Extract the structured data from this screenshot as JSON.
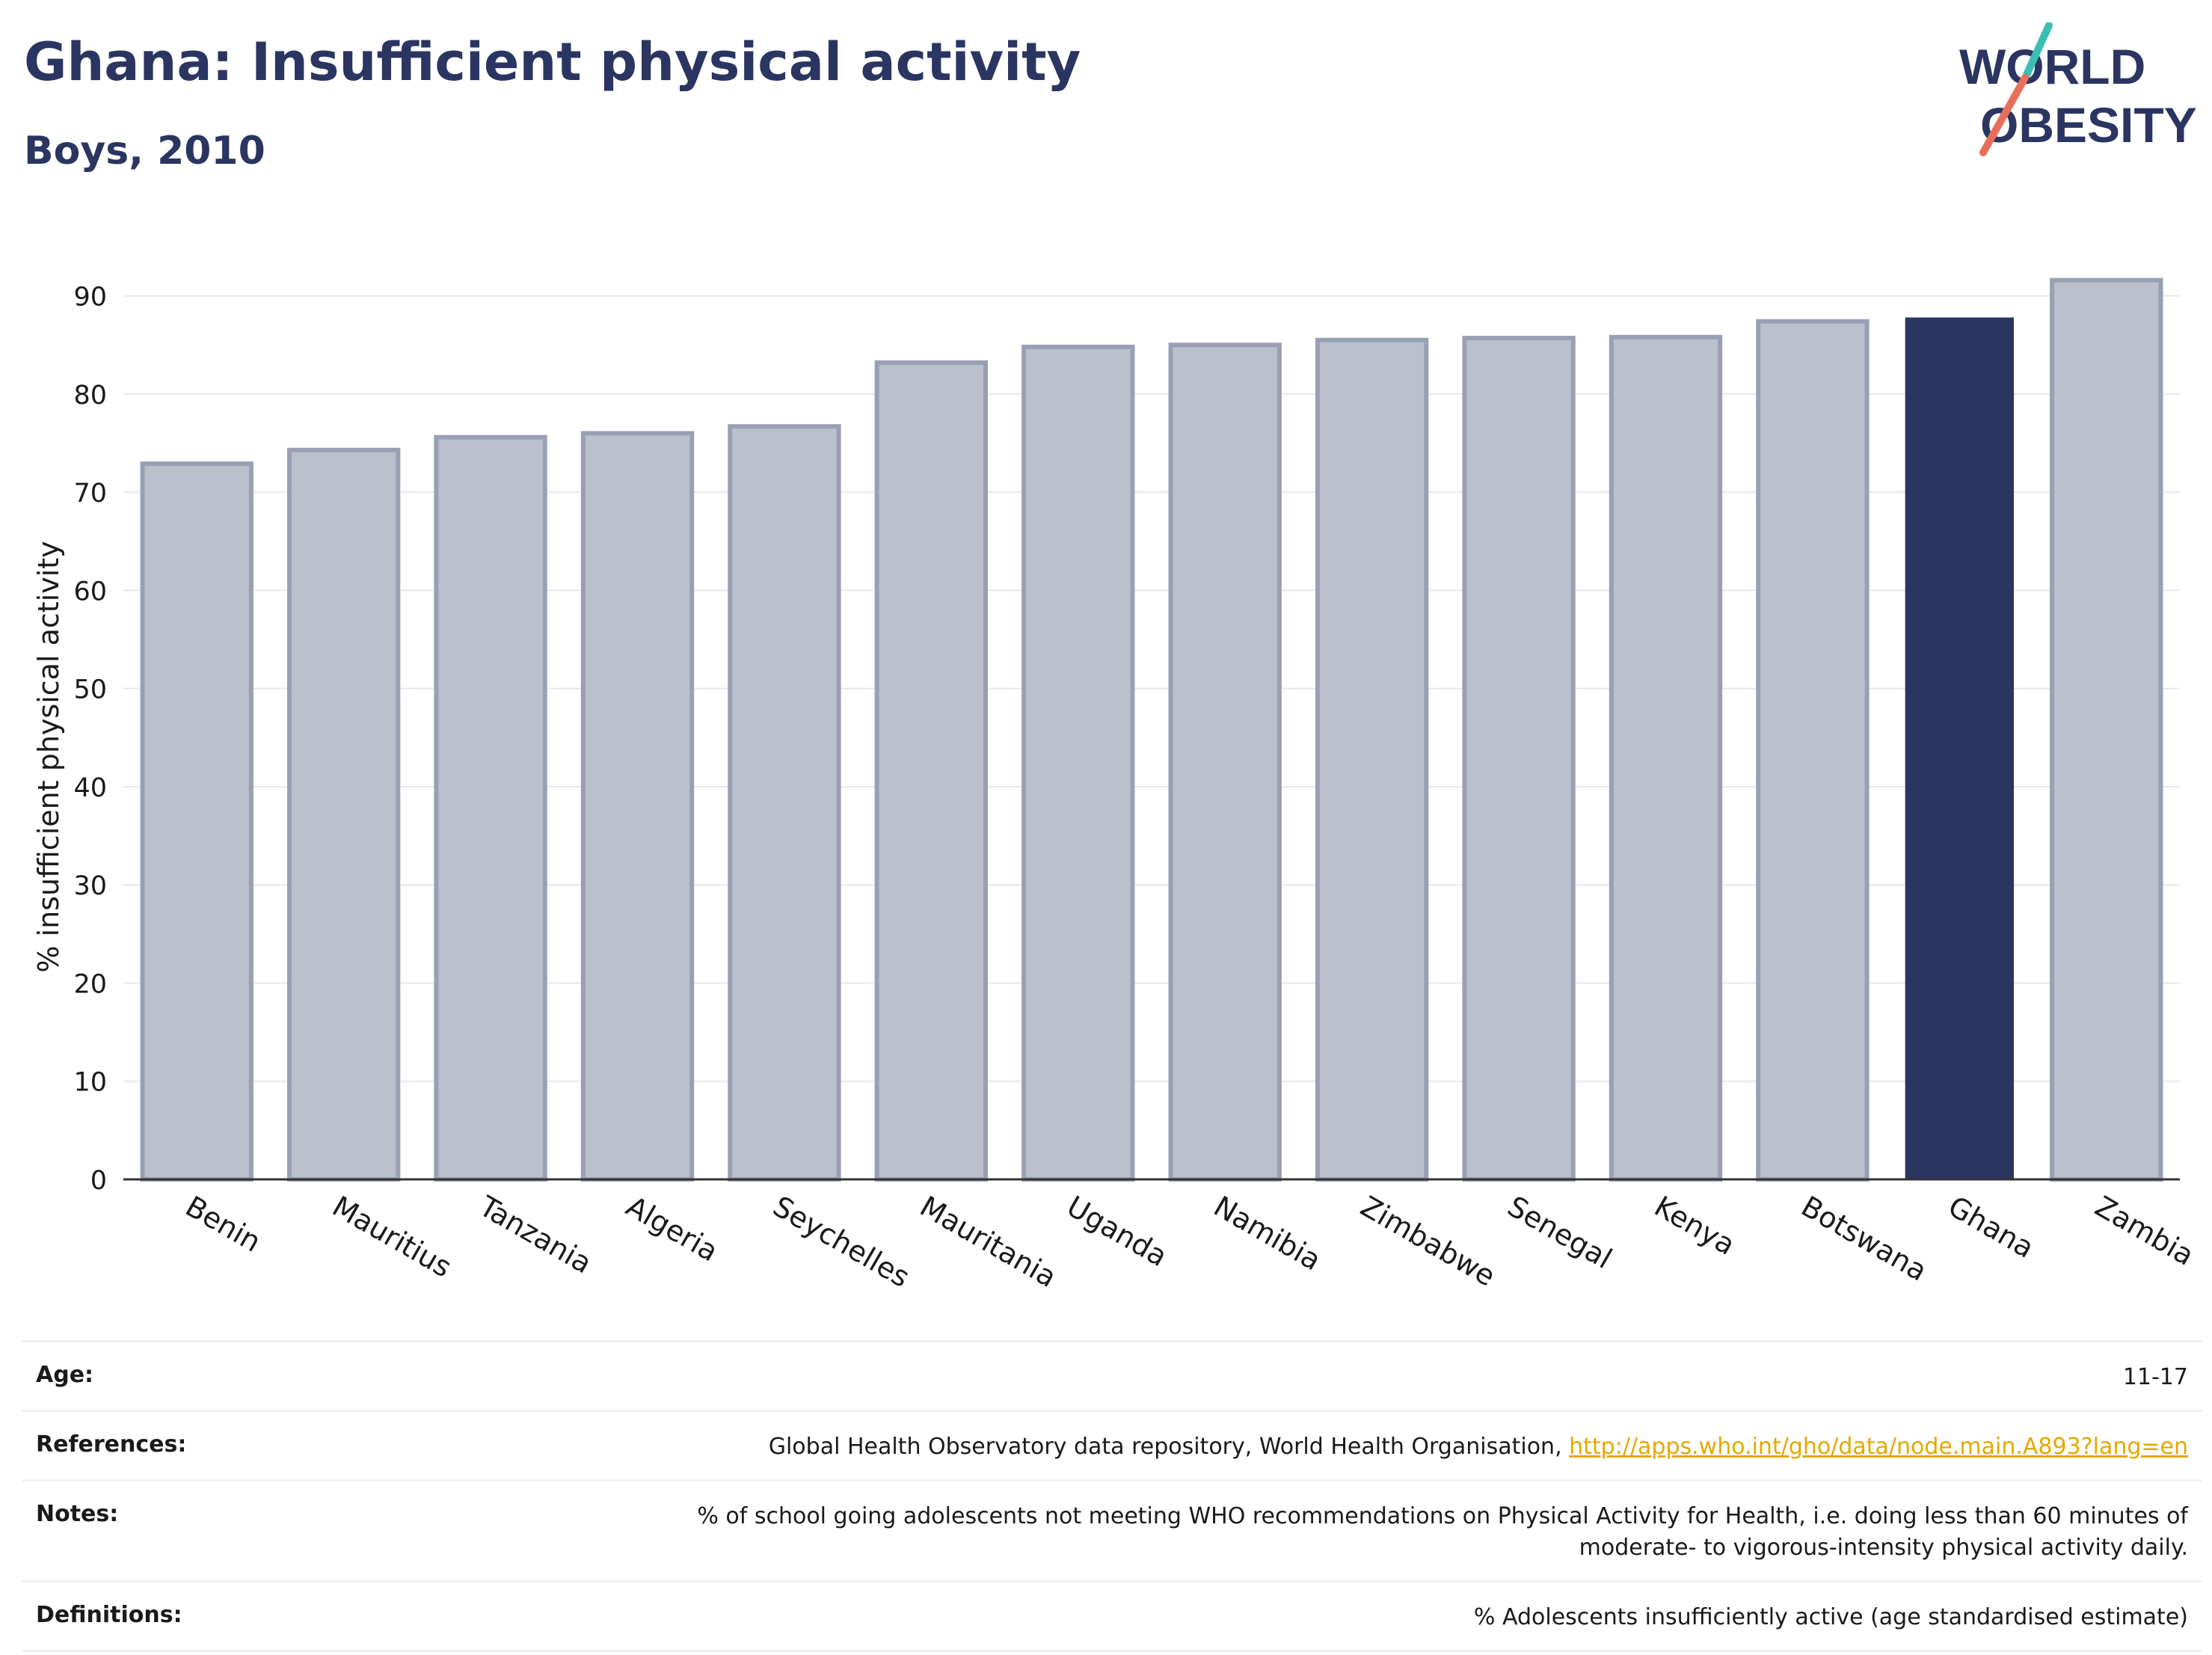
{
  "header": {
    "title": "Ghana: Insufficient physical activity",
    "subtitle": "Boys, 2010"
  },
  "logo": {
    "line1": "WORLD",
    "line2": "OBESITY",
    "colors": {
      "text": "#2b3561",
      "slash_top": "#3bbfb4",
      "slash_bottom": "#e8705a"
    }
  },
  "chart_data": {
    "type": "bar",
    "categories": [
      "Benin",
      "Mauritius",
      "Tanzania",
      "Algeria",
      "Seychelles",
      "Mauritania",
      "Uganda",
      "Namibia",
      "Zimbabwe",
      "Senegal",
      "Kenya",
      "Botswana",
      "Ghana",
      "Zambia"
    ],
    "values": [
      72.9,
      74.3,
      75.6,
      76.0,
      76.7,
      83.2,
      84.8,
      85.0,
      85.5,
      85.7,
      85.8,
      87.4,
      87.8,
      91.6
    ],
    "highlight": "Ghana",
    "ylabel": "% insufficient physical activity",
    "ylim": [
      0,
      95
    ],
    "yticks": [
      0,
      10,
      20,
      30,
      40,
      50,
      60,
      70,
      80,
      90
    ],
    "grid": true,
    "colors": {
      "bar": "#bcc0cd",
      "bar_edge": "#9aa0b4",
      "highlight": "#2b3561"
    }
  },
  "footer": {
    "age": {
      "label": "Age:",
      "value": "11-17"
    },
    "references": {
      "label": "References:",
      "value": "Global Health Observatory data repository, World Health Organisation, ",
      "link": "http://apps.who.int/gho/data/node.main.A893?lang=en"
    },
    "notes": {
      "label": "Notes:",
      "value": "% of school going adolescents not meeting WHO recommendations on Physical Activity for Health, i.e. doing less than 60 minutes of moderate- to vigorous-intensity physical activity daily."
    },
    "definitions": {
      "label": "Definitions:",
      "value": "% Adolescents insufficiently active (age standardised estimate)"
    }
  }
}
